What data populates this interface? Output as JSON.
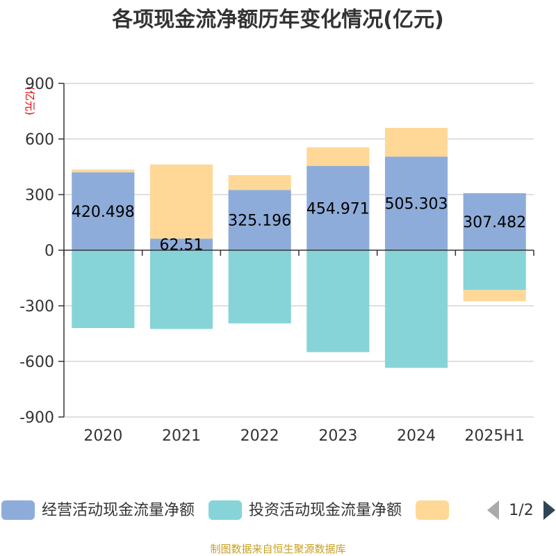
{
  "chart_data": {
    "type": "bar",
    "stacked": true,
    "title": "各项现金流净额历年变化情况(亿元)",
    "unit_label": "(亿元)",
    "categories": [
      "2020",
      "2021",
      "2022",
      "2023",
      "2024",
      "2025H1"
    ],
    "ylim": [
      -900,
      900
    ],
    "yticks": [
      -900,
      -600,
      -300,
      0,
      300,
      600,
      900
    ],
    "grid": true,
    "legend_position": "bottom",
    "series": [
      {
        "name": "经营活动现金流量净额",
        "color": "#8eacd9",
        "values": [
          420.498,
          62.51,
          325.196,
          454.971,
          505.303,
          307.482
        ],
        "labels": [
          "420.498",
          "62.51",
          "325.196",
          "454.971",
          "505.303",
          "307.482"
        ]
      },
      {
        "name": "投资活动现金流量净额",
        "color": "#86d4d8",
        "values": [
          -420,
          -425,
          -395,
          -550,
          -635,
          -215
        ]
      },
      {
        "name": "",
        "color": "#ffd897",
        "values": [
          15,
          400,
          80,
          100,
          155,
          -60
        ]
      }
    ]
  },
  "legend": {
    "page_indicator": "1/2"
  },
  "source": "制图数据来自恒生聚源数据库"
}
